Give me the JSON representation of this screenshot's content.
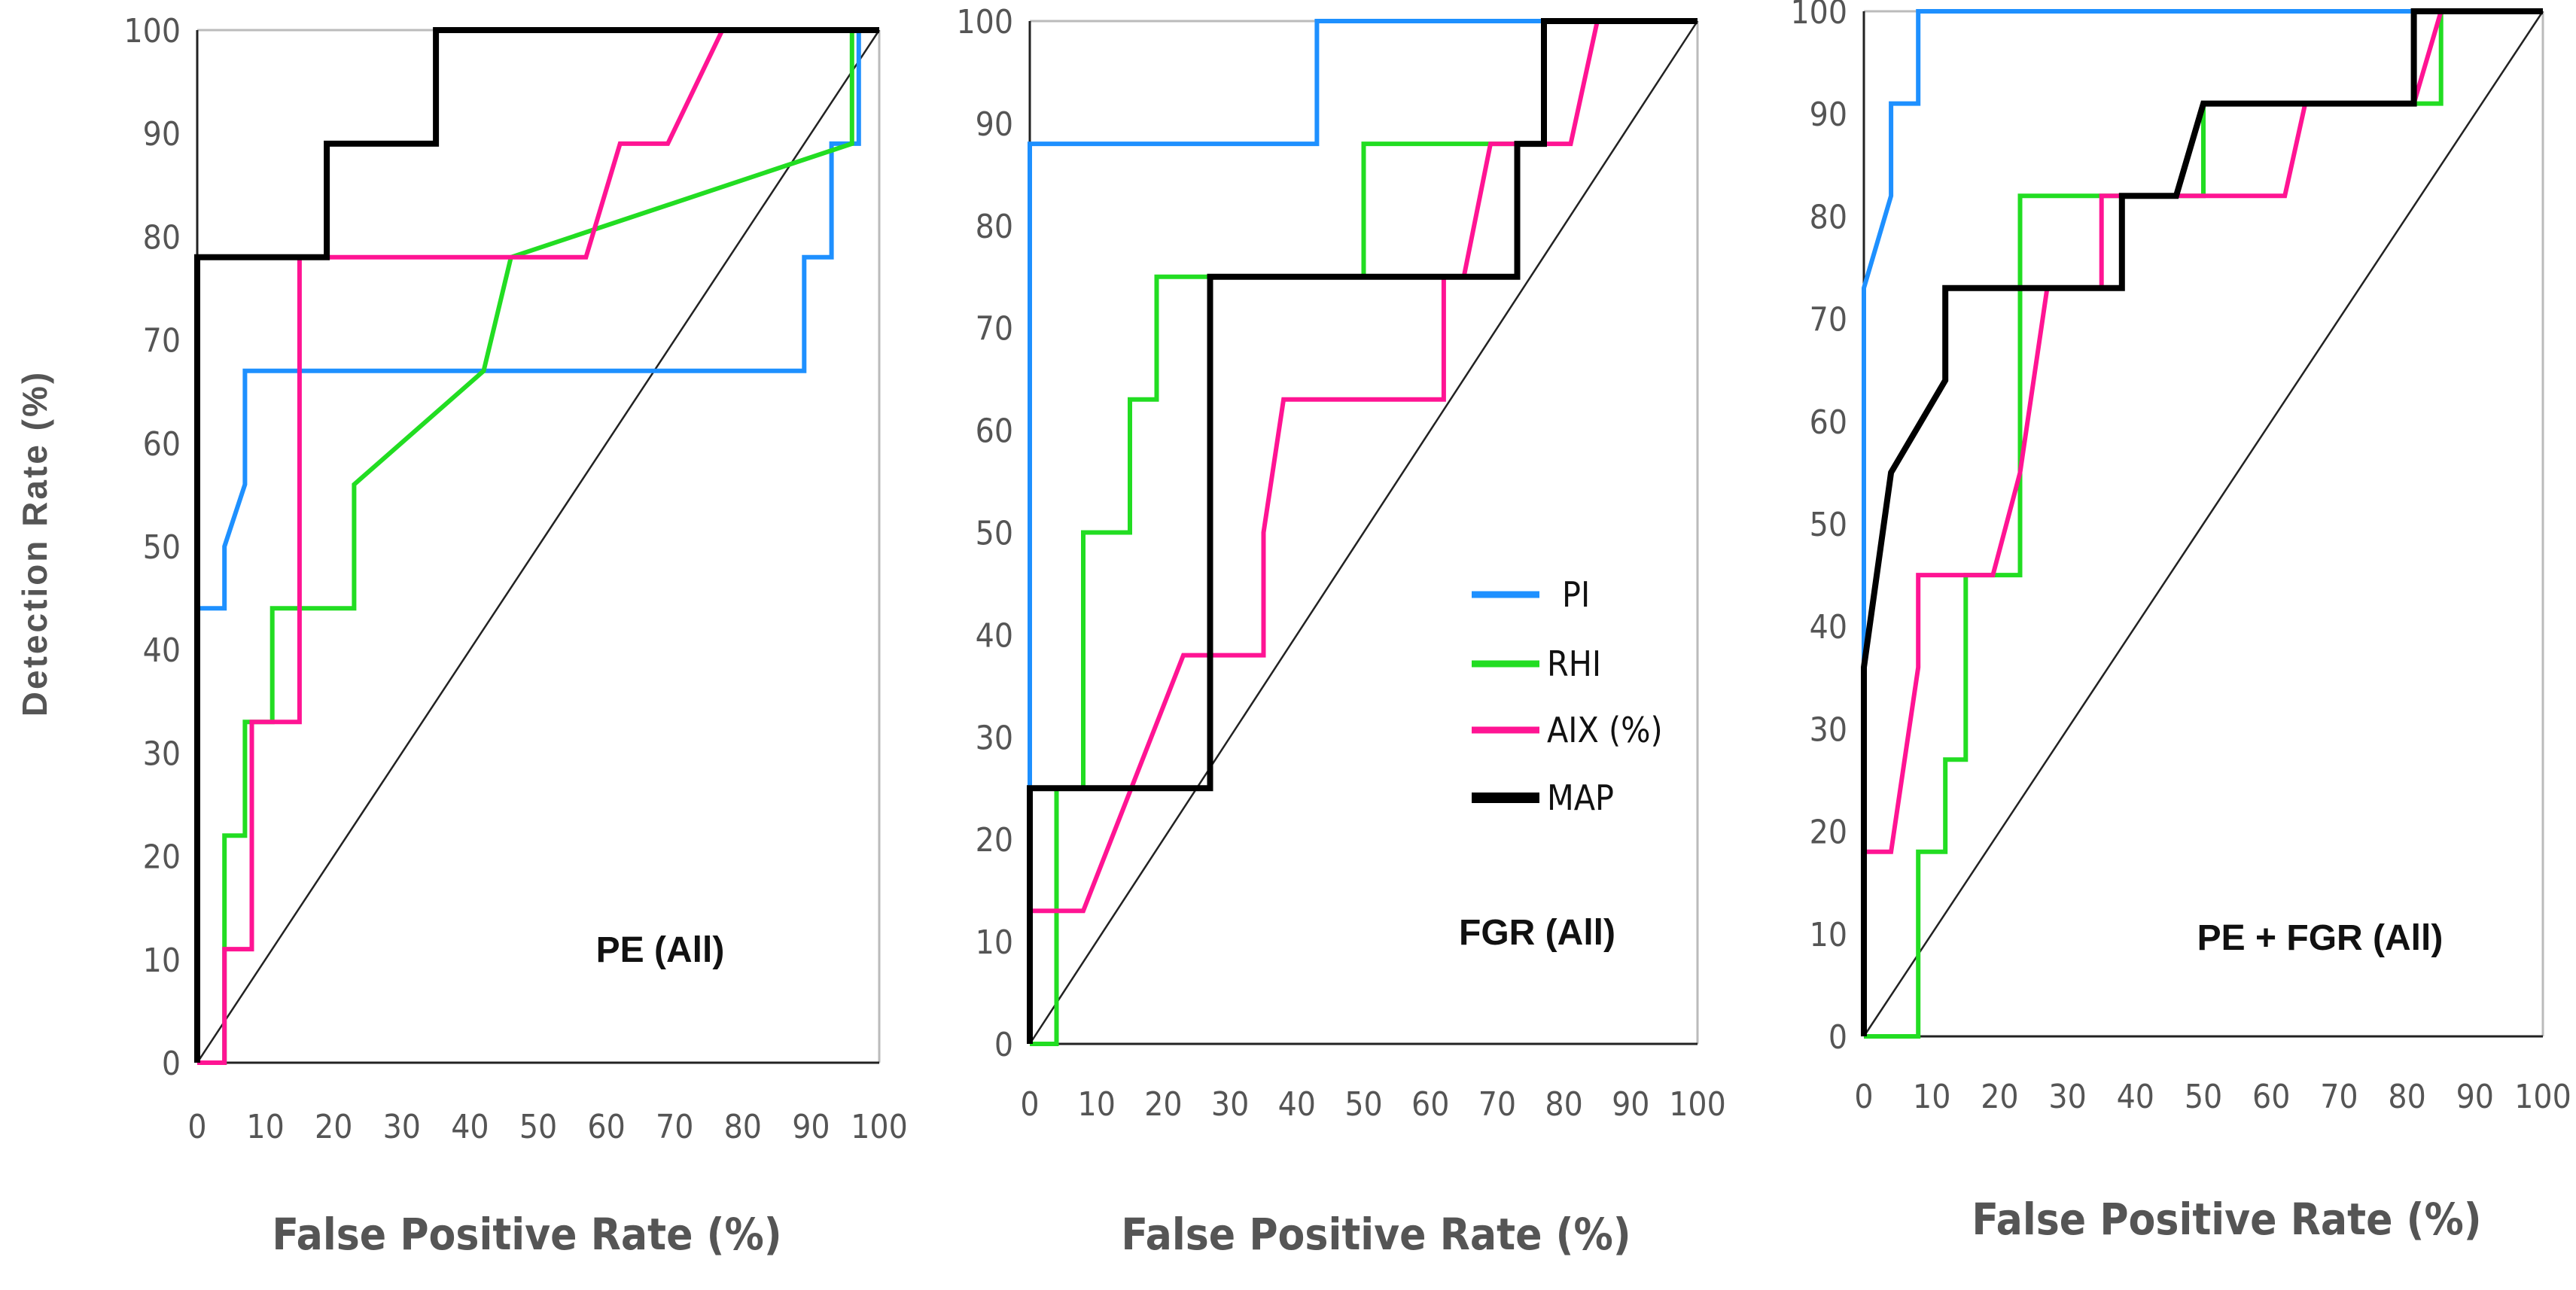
{
  "colors": {
    "PI": "#1E90FF",
    "RHI": "#22DD22",
    "AIX (%)": "#FF1493",
    "MAP": "#000000",
    "axis": "#222222",
    "diagonal": "#222222",
    "tick_text": "#555555"
  },
  "shared": {
    "ylabel": "Detection Rate (%)",
    "xlabel": "False Positive Rate (%)",
    "ticks": [
      "0",
      "10",
      "20",
      "30",
      "40",
      "50",
      "60",
      "70",
      "80",
      "90",
      "100"
    ]
  },
  "legend": {
    "entries": [
      "PI",
      "RHI",
      "AIX (%)",
      "MAP"
    ]
  },
  "chart_data": [
    {
      "type": "line",
      "title": "PE (All)",
      "xlabel": "False Positive Rate (%)",
      "ylabel": "Detection Rate (%)",
      "xlim": [
        0,
        100
      ],
      "ylim": [
        0,
        100
      ],
      "series": [
        {
          "name": "PI",
          "x": [
            0,
            0,
            4,
            4,
            7,
            7,
            89,
            89,
            93,
            93,
            97,
            97,
            100
          ],
          "y": [
            0,
            44,
            44,
            50,
            56,
            67,
            67,
            78,
            78,
            89,
            89,
            100,
            100
          ]
        },
        {
          "name": "RHI",
          "x": [
            0,
            4,
            4,
            7,
            7,
            11,
            11,
            23,
            23,
            42,
            46,
            46,
            96,
            96,
            100
          ],
          "y": [
            0,
            0,
            22,
            22,
            33,
            33,
            44,
            44,
            56,
            67,
            78,
            78,
            89,
            100,
            100
          ]
        },
        {
          "name": "AIX (%)",
          "x": [
            0,
            4,
            4,
            8,
            8,
            15,
            15,
            57,
            62,
            69,
            77,
            100
          ],
          "y": [
            0,
            0,
            11,
            11,
            33,
            33,
            78,
            78,
            89,
            89,
            100,
            100
          ]
        },
        {
          "name": "MAP",
          "x": [
            0,
            0,
            19,
            19,
            35,
            35,
            100
          ],
          "y": [
            0,
            78,
            78,
            89,
            89,
            100,
            100
          ]
        }
      ]
    },
    {
      "type": "line",
      "title": "FGR (All)",
      "xlabel": "False Positive Rate (%)",
      "ylabel": "",
      "xlim": [
        0,
        100
      ],
      "ylim": [
        0,
        100
      ],
      "series": [
        {
          "name": "PI",
          "x": [
            0,
            0,
            43,
            43,
            100
          ],
          "y": [
            0,
            88,
            88,
            100,
            100
          ]
        },
        {
          "name": "RHI",
          "x": [
            0,
            4,
            4,
            8,
            8,
            15,
            15,
            19,
            19,
            50,
            50,
            77,
            77,
            100
          ],
          "y": [
            0,
            0,
            25,
            25,
            50,
            50,
            63,
            63,
            75,
            75,
            88,
            88,
            100,
            100
          ]
        },
        {
          "name": "AIX (%)",
          "x": [
            0,
            0,
            8,
            23,
            35,
            35,
            38,
            62,
            62,
            65,
            69,
            69,
            81,
            85,
            100
          ],
          "y": [
            0,
            13,
            13,
            38,
            38,
            50,
            63,
            63,
            75,
            75,
            88,
            88,
            88,
            100,
            100
          ]
        },
        {
          "name": "MAP",
          "x": [
            0,
            0,
            27,
            27,
            73,
            73,
            77,
            77,
            100
          ],
          "y": [
            0,
            25,
            25,
            75,
            75,
            88,
            88,
            100,
            100
          ]
        }
      ]
    },
    {
      "type": "line",
      "title": "PE + FGR (All)",
      "xlabel": "False Positive Rate (%)",
      "ylabel": "",
      "xlim": [
        0,
        100
      ],
      "ylim": [
        0,
        100
      ],
      "series": [
        {
          "name": "PI",
          "x": [
            0,
            0,
            4,
            4,
            8,
            8,
            100
          ],
          "y": [
            0,
            73,
            82,
            91,
            91,
            100,
            100
          ]
        },
        {
          "name": "RHI",
          "x": [
            0,
            8,
            8,
            12,
            12,
            15,
            15,
            23,
            23,
            50,
            50,
            85,
            85,
            100
          ],
          "y": [
            0,
            0,
            18,
            18,
            27,
            27,
            45,
            45,
            82,
            82,
            91,
            91,
            100,
            100
          ]
        },
        {
          "name": "AIX (%)",
          "x": [
            0,
            0,
            4,
            8,
            8,
            19,
            23,
            27,
            35,
            35,
            62,
            65,
            81,
            85,
            100
          ],
          "y": [
            0,
            18,
            18,
            36,
            45,
            45,
            55,
            73,
            73,
            82,
            82,
            91,
            91,
            100,
            100
          ]
        },
        {
          "name": "MAP",
          "x": [
            0,
            0,
            4,
            12,
            12,
            38,
            38,
            46,
            50,
            81,
            81,
            100
          ],
          "y": [
            0,
            36,
            55,
            64,
            73,
            73,
            82,
            82,
            91,
            91,
            100,
            100
          ]
        }
      ]
    }
  ]
}
